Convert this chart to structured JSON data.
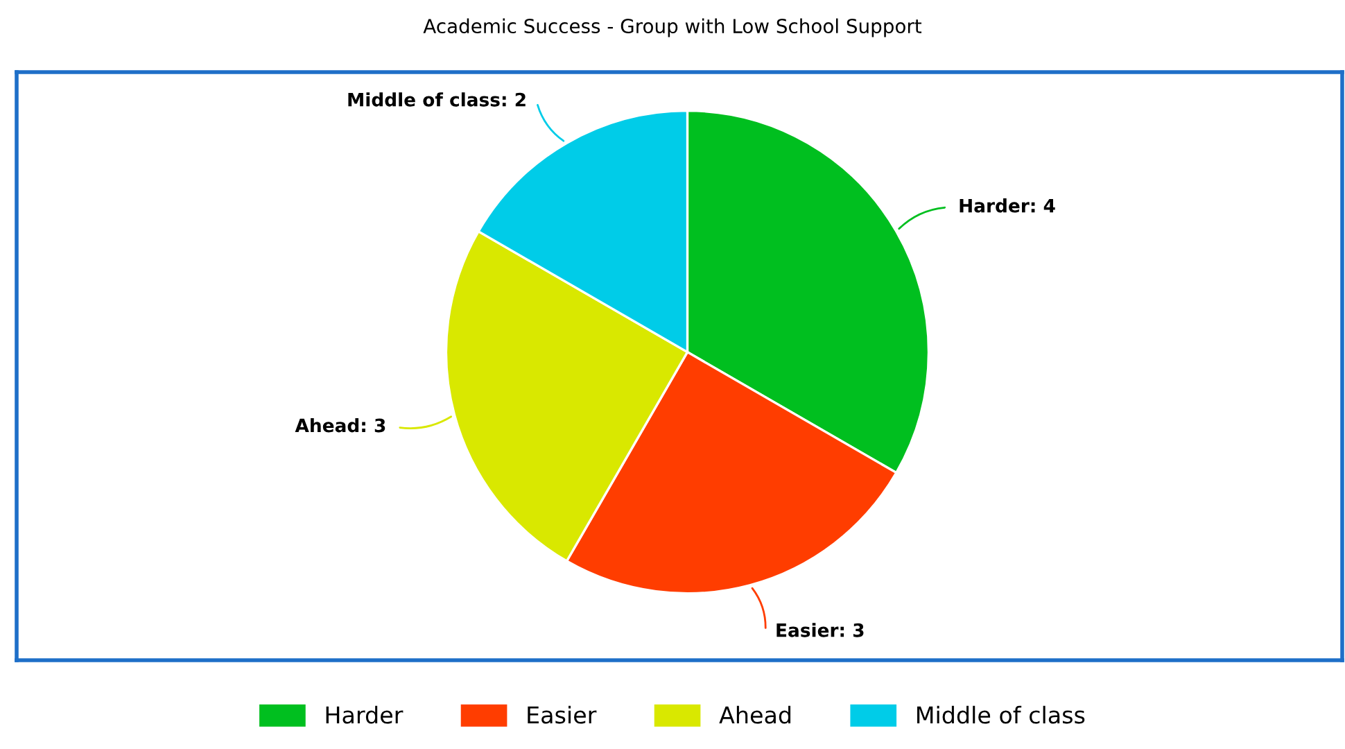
{
  "chart_data": {
    "type": "pie",
    "title": "Academic Success - Group with Low School Support",
    "categories": [
      "Harder",
      "Easier",
      "Ahead",
      "Middle of class"
    ],
    "values": [
      4,
      3,
      3,
      2
    ],
    "colors": [
      "#00bf1f",
      "#ff3d00",
      "#d9e800",
      "#00cce8"
    ],
    "value_labels": [
      ": 4",
      ": 3",
      ": 3",
      ": 2"
    ],
    "legend": "bottom"
  }
}
